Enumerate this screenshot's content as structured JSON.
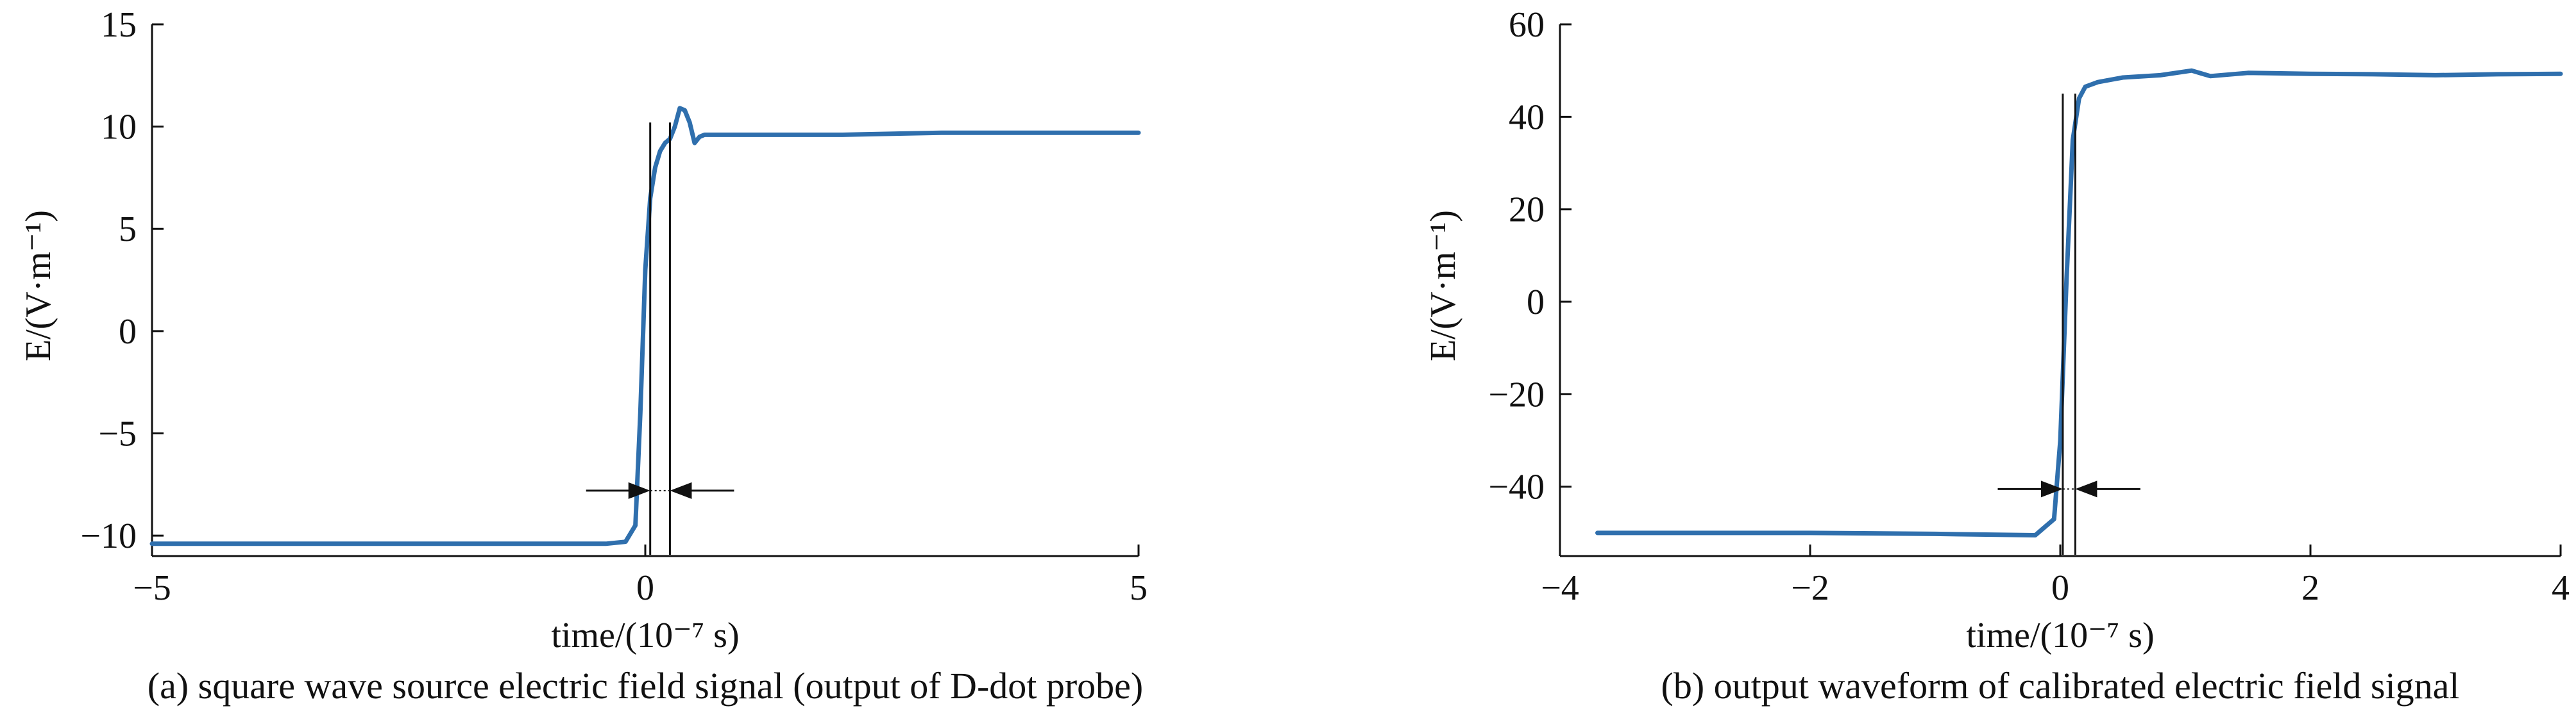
{
  "chart_data": [
    {
      "type": "line",
      "caption": "(a) square wave source electric field signal (output of D-dot probe)",
      "xlabel": "time/(10⁻⁷ s)",
      "ylabel": "E/(V·m⁻¹)",
      "xlim": [
        -5,
        5
      ],
      "ylim": [
        -11,
        15
      ],
      "xticks": [
        "−5",
        "0",
        "5"
      ],
      "xtick_values": [
        -5,
        0,
        5
      ],
      "yticks": [
        "−10",
        "−5",
        "0",
        "5",
        "10",
        "15"
      ],
      "ytick_values": [
        -10,
        -5,
        0,
        5,
        10,
        15
      ],
      "line_color": "#2f6fad",
      "series": [
        {
          "x": [
            -5,
            -4,
            -3,
            -2,
            -1,
            -0.4,
            -0.2,
            -0.1,
            -0.05,
            0,
            0.05,
            0.1,
            0.15,
            0.2,
            0.25,
            0.3,
            0.35,
            0.4,
            0.45,
            0.5,
            0.55,
            0.6,
            0.65,
            0.7,
            1,
            2,
            3,
            4,
            5
          ],
          "y": [
            -10.4,
            -10.4,
            -10.4,
            -10.4,
            -10.4,
            -10.4,
            -10.3,
            -9.5,
            -4,
            3,
            6.5,
            8,
            8.8,
            9.2,
            9.4,
            10,
            10.9,
            10.8,
            10.2,
            9.2,
            9.5,
            9.6,
            9.6,
            9.6,
            9.6,
            9.6,
            9.7,
            9.7,
            9.7
          ]
        }
      ],
      "markers": [
        0.05,
        0.25
      ],
      "marker_top": 10.2,
      "arrow_y": -7.8
    },
    {
      "type": "line",
      "caption": "(b) output waveform of calibrated electric field signal",
      "xlabel": "time/(10⁻⁷ s)",
      "ylabel": "E/(V·m⁻¹)",
      "xlim": [
        -4,
        4
      ],
      "ylim": [
        -55,
        60
      ],
      "xticks": [
        "−4",
        "−2",
        "0",
        "2",
        "4"
      ],
      "xtick_values": [
        -4,
        -2,
        0,
        2,
        4
      ],
      "yticks": [
        "−40",
        "−20",
        "0",
        "20",
        "40",
        "60"
      ],
      "ytick_values": [
        -40,
        -20,
        0,
        20,
        40,
        60
      ],
      "line_color": "#2f6fad",
      "series": [
        {
          "x": [
            -3.7,
            -3,
            -2,
            -1,
            -0.2,
            -0.05,
            0,
            0.05,
            0.1,
            0.15,
            0.2,
            0.3,
            0.5,
            0.8,
            1.05,
            1.2,
            1.5,
            2,
            2.5,
            3,
            3.5,
            4
          ],
          "y": [
            -50,
            -50,
            -50,
            -50.2,
            -50.5,
            -47,
            -30,
            5,
            35,
            44,
            46.5,
            47.5,
            48.5,
            49,
            50,
            48.8,
            49.5,
            49.3,
            49.2,
            49,
            49.2,
            49.3
          ]
        }
      ],
      "markers": [
        0.02,
        0.12
      ],
      "marker_top": 45,
      "arrow_y": -40.5
    }
  ]
}
